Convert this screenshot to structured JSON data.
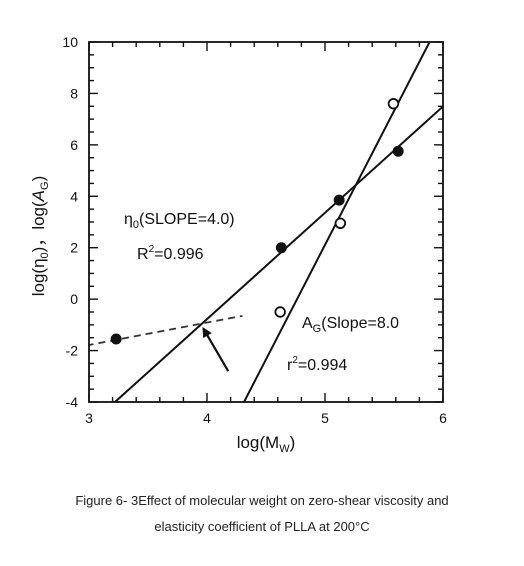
{
  "chart_data": {
    "type": "scatter",
    "xlabel": "log(M",
    "xlabel_sub": "W",
    "xlabel_close": ")",
    "ylabel": {
      "part1": "log(η",
      "part1_sub": "0",
      "part1_close": ")，",
      "part2": "log(",
      "part2_italic": "A",
      "part2_sub": "G",
      "part2_close": ")"
    },
    "xlim": [
      3,
      6
    ],
    "ylim": [
      -4,
      10
    ],
    "x_ticks": [
      "3",
      "4",
      "5",
      "6"
    ],
    "y_ticks": [
      "-4",
      "-2",
      "0",
      "2",
      "4",
      "6",
      "8",
      "10"
    ],
    "grid": false,
    "series": [
      {
        "name": "η0",
        "marker": "filled-circle",
        "points": [
          [
            3.23,
            -1.55
          ],
          [
            4.63,
            2.0
          ],
          [
            5.12,
            3.85
          ],
          [
            5.62,
            5.75
          ]
        ],
        "fit": {
          "x": [
            2.93,
            6.05
          ],
          "y": [
            -5.2,
            7.7
          ]
        }
      },
      {
        "name": "AG",
        "marker": "open-circle",
        "points": [
          [
            4.62,
            -0.5
          ],
          [
            5.13,
            2.95
          ],
          [
            5.58,
            7.6
          ]
        ],
        "fit": {
          "x": [
            4.28,
            5.92
          ],
          "y": [
            -4.3,
            10.3
          ]
        }
      }
    ],
    "extrapolation": {
      "x": [
        2.98,
        4.3
      ],
      "y": [
        -1.8,
        -0.65
      ],
      "style": "dashed"
    },
    "arrow": {
      "from": [
        4.18,
        -2.8
      ],
      "to": [
        3.97,
        -1.15
      ]
    },
    "annotations": {
      "eta_label": "η",
      "eta_sub": "0",
      "eta_slope": "(SLOPE=4.0)",
      "r2_eta_prefix": "R",
      "r2_eta_sup": "2",
      "r2_eta_value": "=0.996",
      "ag_label": "A",
      "ag_sub": "G",
      "ag_slope": "(Slope=8.0",
      "r2_ag_prefix": "r",
      "r2_ag_sup": "2",
      "r2_ag_value": "=0.994"
    },
    "colors": {
      "line": "#111111",
      "marker": "#111111",
      "open_fill": "#ffffff"
    }
  },
  "caption": {
    "line1": "Figure 6- 3Effect of molecular weight on zero-shear viscosity and",
    "line2": "elasticity coefficient of PLLA at 200°C"
  }
}
